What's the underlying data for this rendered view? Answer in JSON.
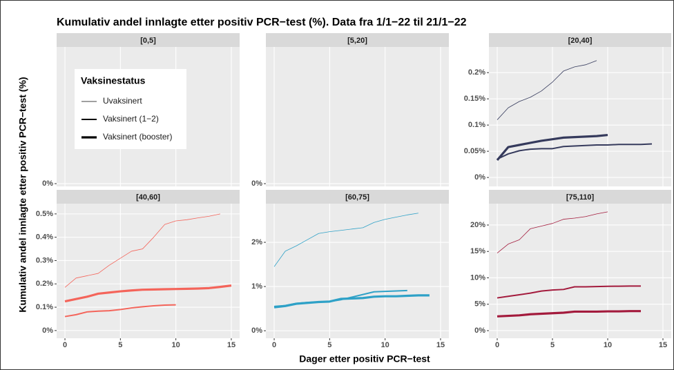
{
  "title": "Kumulativ andel innlagte etter positiv PCR−test (%). Data fra 1/1−22 til 21/1−22",
  "x_label": "Dager etter positiv PCR−test",
  "y_label": "Kumulativ andel innlagte etter positiv PCR−test (%)",
  "legend_title": "Vaksinestatus",
  "chart_data": [
    {
      "type": "line",
      "title": "[0,5]",
      "xlim": [
        -0.75,
        15.75
      ],
      "xticks": [
        0,
        5,
        10,
        15
      ],
      "ylim": [
        -0.002,
        0.1
      ],
      "yticks": [
        {
          "value": 0,
          "label": "0%"
        }
      ],
      "grid": true
    },
    {
      "type": "line",
      "title": "[5,20]",
      "xlim": [
        -0.75,
        15.75
      ],
      "xticks": [
        0,
        5,
        10,
        15
      ],
      "ylim": [
        -0.002,
        0.1
      ],
      "yticks": [
        {
          "value": 0,
          "label": "0%"
        }
      ],
      "grid": true
    },
    {
      "type": "line",
      "title": "[20,40]",
      "xlim": [
        -0.75,
        15.75
      ],
      "xticks": [
        0,
        5,
        10,
        15
      ],
      "ylim": [
        -0.017,
        0.249
      ],
      "yticks": [
        {
          "value": 0,
          "label": "0%"
        },
        {
          "value": 0.05,
          "label": "0.05%"
        },
        {
          "value": 0.1,
          "label": "0.1%"
        },
        {
          "value": 0.15,
          "label": "0.15%"
        },
        {
          "value": 0.2,
          "label": "0.2%"
        }
      ],
      "grid": true,
      "x": [
        0,
        1,
        2,
        3,
        4,
        5,
        6,
        7,
        8,
        9,
        10,
        11,
        12,
        13,
        14,
        15
      ],
      "series": [
        {
          "name": "Uvaksinert",
          "color": "#353a5c",
          "width": 0.8,
          "values": [
            0.11,
            0.133,
            0.145,
            0.153,
            0.165,
            0.182,
            0.203,
            0.211,
            0.215,
            0.223,
            null,
            null,
            null,
            null,
            null,
            null
          ]
        },
        {
          "name": "Vaksinert (1−2)",
          "color": "#353a5c",
          "width": 2,
          "values": [
            0.035,
            0.045,
            0.051,
            0.054,
            0.055,
            0.055,
            0.059,
            0.06,
            0.061,
            0.062,
            0.062,
            0.063,
            0.063,
            0.063,
            0.064,
            null
          ]
        },
        {
          "name": "Vaksinert (booster)",
          "color": "#353a5c",
          "width": 3.2,
          "values": [
            0.033,
            0.058,
            0.062,
            0.066,
            0.07,
            0.073,
            0.076,
            0.077,
            0.078,
            0.079,
            0.081,
            null,
            null,
            null,
            null,
            null
          ]
        }
      ]
    },
    {
      "type": "line",
      "title": "[40,60]",
      "xlim": [
        -0.75,
        15.75
      ],
      "xticks": [
        0,
        5,
        10,
        15
      ],
      "ylim": [
        -0.033,
        0.544
      ],
      "yticks": [
        {
          "value": 0,
          "label": "0%"
        },
        {
          "value": 0.1,
          "label": "0.1%"
        },
        {
          "value": 0.2,
          "label": "0.2%"
        },
        {
          "value": 0.3,
          "label": "0.3%"
        },
        {
          "value": 0.4,
          "label": "0.4%"
        },
        {
          "value": 0.5,
          "label": "0.5%"
        }
      ],
      "grid": true,
      "x": [
        0,
        1,
        2,
        3,
        4,
        5,
        6,
        7,
        8,
        9,
        10,
        11,
        12,
        13,
        14,
        15
      ],
      "series": [
        {
          "name": "Uvaksinert",
          "color": "#f4645a",
          "width": 0.8,
          "values": [
            0.185,
            0.225,
            0.235,
            0.245,
            0.28,
            0.31,
            0.34,
            0.35,
            0.4,
            0.455,
            0.47,
            0.475,
            0.483,
            0.49,
            0.5,
            null
          ]
        },
        {
          "name": "Vaksinert (1−2)",
          "color": "#f4645a",
          "width": 2,
          "values": [
            0.06,
            0.068,
            0.08,
            0.083,
            0.085,
            0.09,
            0.097,
            0.102,
            0.106,
            0.109,
            0.11,
            null,
            null,
            null,
            null,
            null
          ]
        },
        {
          "name": "Vaksinert (booster)",
          "color": "#f4645a",
          "width": 3.2,
          "values": [
            0.125,
            0.135,
            0.145,
            0.158,
            0.163,
            0.168,
            0.172,
            0.175,
            0.176,
            0.177,
            0.178,
            0.179,
            0.18,
            0.182,
            0.187,
            0.193
          ]
        }
      ]
    },
    {
      "type": "line",
      "title": "[60,75]",
      "xlim": [
        -0.75,
        15.75
      ],
      "xticks": [
        0,
        5,
        10,
        15
      ],
      "ylim": [
        -0.17,
        2.875
      ],
      "yticks": [
        {
          "value": 0,
          "label": "0%"
        },
        {
          "value": 1,
          "label": "1%"
        },
        {
          "value": 2,
          "label": "2%"
        }
      ],
      "grid": true,
      "x": [
        0,
        1,
        2,
        3,
        4,
        5,
        6,
        7,
        8,
        9,
        10,
        11,
        12,
        13,
        14,
        15
      ],
      "series": [
        {
          "name": "Uvaksinert",
          "color": "#2ea1c7",
          "width": 0.8,
          "values": [
            1.45,
            1.8,
            1.92,
            2.06,
            2.2,
            2.24,
            2.27,
            2.3,
            2.33,
            2.45,
            2.52,
            2.57,
            2.62,
            2.66,
            null,
            null
          ]
        },
        {
          "name": "Vaksinert (1−2)",
          "color": "#2ea1c7",
          "width": 2,
          "values": [
            0.55,
            0.57,
            0.62,
            0.64,
            0.65,
            0.66,
            0.7,
            0.76,
            0.82,
            0.88,
            0.89,
            0.9,
            0.91,
            null,
            null,
            null
          ]
        },
        {
          "name": "Vaksinert (booster)",
          "color": "#2ea1c7",
          "width": 3.2,
          "values": [
            0.53,
            0.56,
            0.61,
            0.63,
            0.65,
            0.66,
            0.72,
            0.73,
            0.74,
            0.77,
            0.78,
            0.78,
            0.79,
            0.8,
            0.8,
            null
          ]
        }
      ]
    },
    {
      "type": "line",
      "title": "[75,110]",
      "xlim": [
        -0.75,
        15.75
      ],
      "xticks": [
        0,
        5,
        10,
        15
      ],
      "ylim": [
        -1.44,
        24.05
      ],
      "yticks": [
        {
          "value": 0,
          "label": "0%"
        },
        {
          "value": 5,
          "label": "5%"
        },
        {
          "value": 10,
          "label": "10%"
        },
        {
          "value": 15,
          "label": "15%"
        },
        {
          "value": 20,
          "label": "20%"
        }
      ],
      "grid": true,
      "x": [
        0,
        1,
        2,
        3,
        4,
        5,
        6,
        7,
        8,
        9,
        10,
        11,
        12,
        13,
        14,
        15
      ],
      "series": [
        {
          "name": "Uvaksinert",
          "color": "#a31a3c",
          "width": 0.8,
          "values": [
            14.7,
            16.4,
            17.2,
            19.3,
            19.8,
            20.3,
            21.1,
            21.3,
            21.6,
            22.1,
            22.5,
            null,
            null,
            null,
            null,
            null
          ]
        },
        {
          "name": "Vaksinert (1−2)",
          "color": "#a31a3c",
          "width": 2,
          "values": [
            6.2,
            6.5,
            6.8,
            7.1,
            7.5,
            7.7,
            7.8,
            8.3,
            8.3,
            8.35,
            8.4,
            8.42,
            8.44,
            8.45,
            null,
            null
          ]
        },
        {
          "name": "Vaksinert (booster)",
          "color": "#a31a3c",
          "width": 3.2,
          "values": [
            2.7,
            2.8,
            2.9,
            3.1,
            3.2,
            3.3,
            3.4,
            3.6,
            3.6,
            3.6,
            3.65,
            3.65,
            3.7,
            3.7,
            null,
            null
          ]
        }
      ]
    }
  ]
}
